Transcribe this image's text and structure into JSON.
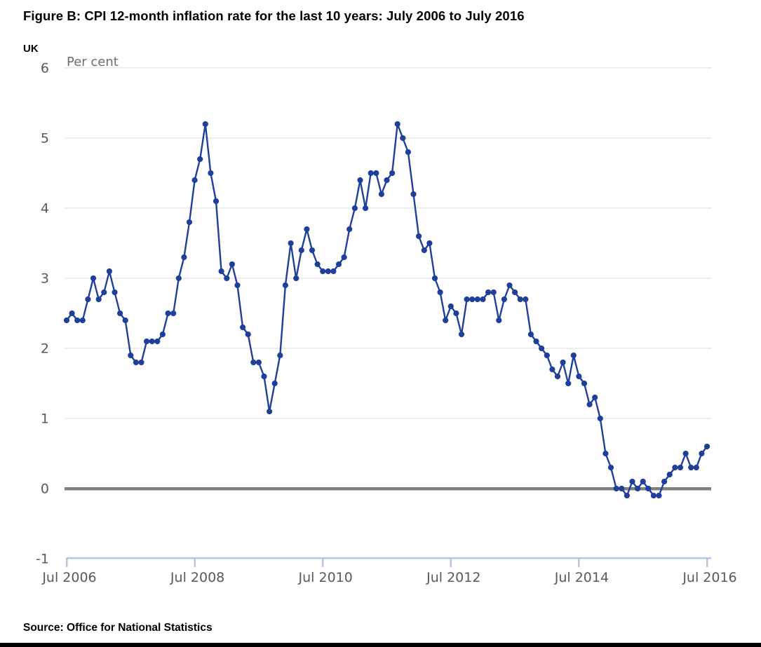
{
  "header": {
    "title": "Figure B: CPI 12-month inflation rate for the last 10 years: July 2006 to July 2016",
    "region": "UK"
  },
  "footer": {
    "source": "Source: Office for National Statistics"
  },
  "chart_data": {
    "type": "line",
    "title": "Figure B: CPI 12-month inflation rate for the last 10 years: July 2006 to July 2016",
    "region": "UK",
    "ylabel": "Per cent",
    "xlabel": "",
    "x_start": "Jul 2006",
    "x_end": "Jul 2016",
    "x_tick_labels": [
      "Jul 2006",
      "Jul 2008",
      "Jul 2010",
      "Jul 2012",
      "Jul 2014",
      "Jul 2016"
    ],
    "x_tick_indices": [
      0,
      24,
      48,
      72,
      96,
      120
    ],
    "y_ticks": [
      6,
      5,
      4,
      3,
      2,
      1,
      0,
      -1
    ],
    "ylim": [
      -1,
      6
    ],
    "grid": "horizontal-only",
    "legend": "none",
    "series": [
      {
        "name": "CPI 12-month inflation rate",
        "values": [
          2.4,
          2.5,
          2.4,
          2.4,
          2.7,
          3.0,
          2.7,
          2.8,
          3.1,
          2.8,
          2.5,
          2.4,
          1.9,
          1.8,
          1.8,
          2.1,
          2.1,
          2.1,
          2.2,
          2.5,
          2.5,
          3.0,
          3.3,
          3.8,
          4.4,
          4.7,
          5.2,
          4.5,
          4.1,
          3.1,
          3.0,
          3.2,
          2.9,
          2.3,
          2.2,
          1.8,
          1.8,
          1.6,
          1.1,
          1.5,
          1.9,
          2.9,
          3.5,
          3.0,
          3.4,
          3.7,
          3.4,
          3.2,
          3.1,
          3.1,
          3.1,
          3.2,
          3.3,
          3.7,
          4.0,
          4.4,
          4.0,
          4.5,
          4.5,
          4.2,
          4.4,
          4.5,
          5.2,
          5.0,
          4.8,
          4.2,
          3.6,
          3.4,
          3.5,
          3.0,
          2.8,
          2.4,
          2.6,
          2.5,
          2.2,
          2.7,
          2.7,
          2.7,
          2.7,
          2.8,
          2.8,
          2.4,
          2.7,
          2.9,
          2.8,
          2.7,
          2.7,
          2.2,
          2.1,
          2.0,
          1.9,
          1.7,
          1.6,
          1.8,
          1.5,
          1.9,
          1.6,
          1.5,
          1.2,
          1.3,
          1.0,
          0.5,
          0.3,
          0.0,
          0.0,
          -0.1,
          0.1,
          0.0,
          0.1,
          0.0,
          -0.1,
          -0.1,
          0.1,
          0.2,
          0.3,
          0.3,
          0.5,
          0.3,
          0.3,
          0.5,
          0.6
        ]
      }
    ],
    "colors": {
      "line": "#1f3f9b",
      "marker": "#1f3f9b",
      "grid": "#d8d8d8",
      "zero_line": "#808080",
      "axis": "#b3c7e2",
      "tick_text": "#595959",
      "unit_text": "#6d6d6d",
      "title_text": "#000000"
    }
  }
}
